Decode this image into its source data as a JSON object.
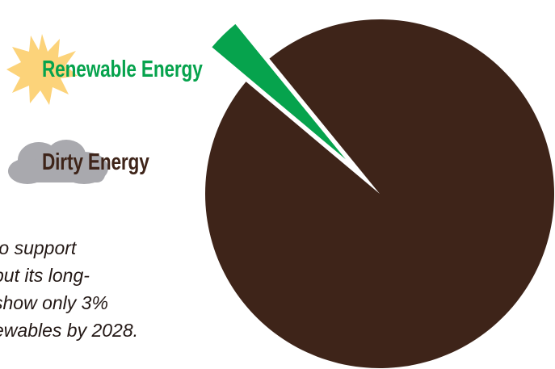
{
  "chart_data": {
    "type": "pie",
    "series": [
      {
        "name": "Renewable Energy",
        "value": 3,
        "color": "#06a34d",
        "exploded": true
      },
      {
        "name": "Dirty Energy",
        "value": 97,
        "color": "#3e2419"
      }
    ],
    "legend": [
      {
        "label": "Renewable Energy",
        "icon": "sun-icon",
        "color": "#06a34d",
        "icon_color": "#fcd37a"
      },
      {
        "label": "Dirty Energy",
        "icon": "cloud-icon",
        "color": "#3e2419",
        "icon_color": "#a9a9ae"
      }
    ],
    "legend_placement": "left"
  },
  "caption": {
    "lines": [
      "to support",
      "but its long-",
      "show only 3%",
      "ewables by 2028."
    ]
  }
}
